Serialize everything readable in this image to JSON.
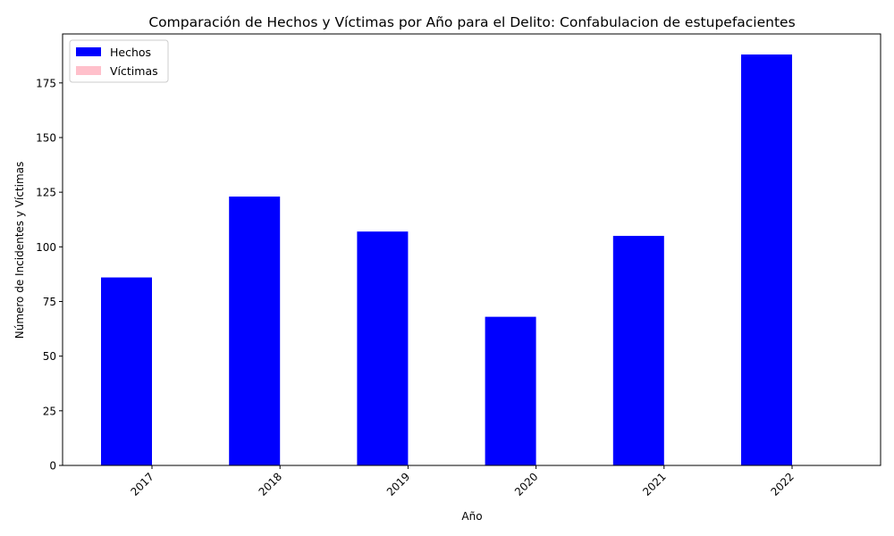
{
  "chart_data": {
    "type": "bar",
    "title": "Comparación de Hechos y Víctimas por Año para el Delito: Confabulacion de estupefacientes",
    "xlabel": "Año",
    "ylabel": "Número de Incidentes y Víctimas",
    "categories": [
      "2017",
      "2018",
      "2019",
      "2020",
      "2021",
      "2022"
    ],
    "series": [
      {
        "name": "Hechos",
        "values": [
          86,
          123,
          107,
          68,
          105,
          188
        ],
        "color": "#0000ff"
      },
      {
        "name": "Víctimas",
        "values": [
          0,
          0,
          0,
          0,
          0,
          0
        ],
        "color": "#ffc0cb"
      }
    ],
    "ylim": [
      0,
      197.4
    ],
    "yticks": [
      0,
      25,
      50,
      75,
      100,
      125,
      150,
      175
    ],
    "grid": false,
    "legend_position": "top-left"
  }
}
